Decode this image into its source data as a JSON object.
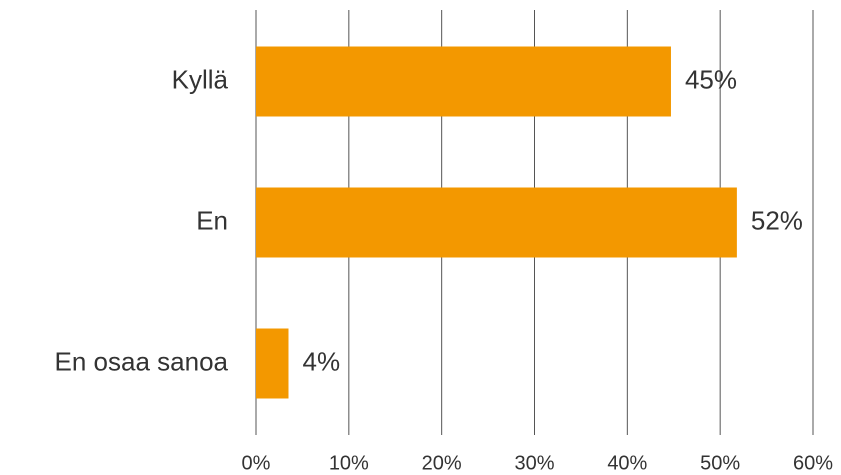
{
  "chart_data": {
    "type": "bar",
    "orientation": "horizontal",
    "categories": [
      "Kyllä",
      "En",
      "En osaa sanoa"
    ],
    "values": [
      44.7,
      51.8,
      3.5
    ],
    "value_labels": [
      "45%",
      "52%",
      "4%"
    ],
    "color": "#f39800",
    "xlim": [
      0,
      60
    ],
    "xticks": [
      {
        "value": 0,
        "label": "0%"
      },
      {
        "value": 10,
        "label": "10%"
      },
      {
        "value": 20,
        "label": "20%"
      },
      {
        "value": 30,
        "label": "30%"
      },
      {
        "value": 40,
        "label": "40%"
      },
      {
        "value": 50,
        "label": "50%"
      },
      {
        "value": 60,
        "label": "60%"
      }
    ],
    "grid": true
  }
}
